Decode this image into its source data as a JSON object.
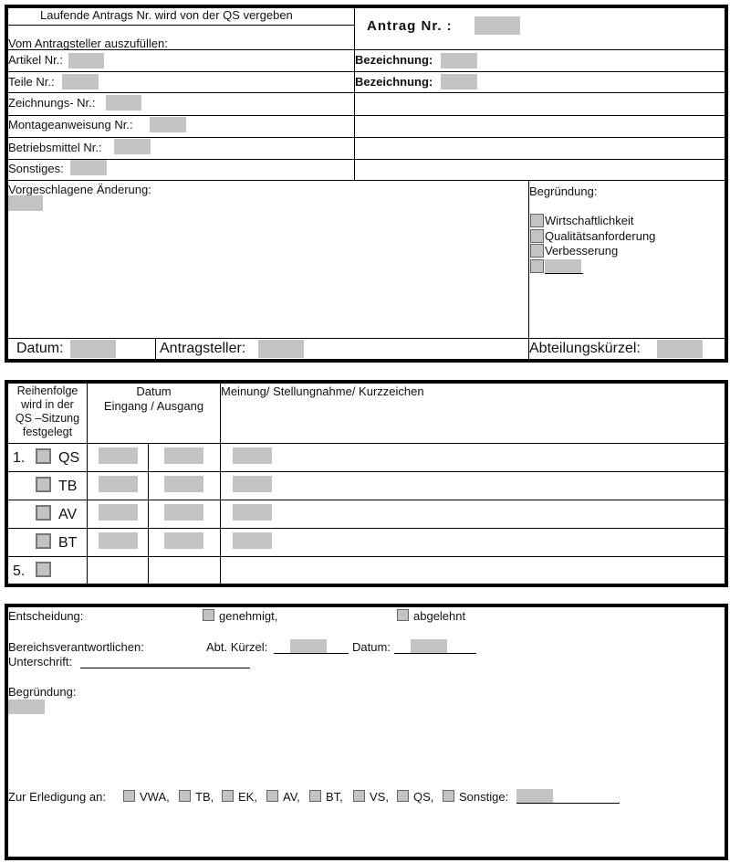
{
  "form": {
    "header_note": "Laufende Antrags Nr. wird von der QS vergeben",
    "antrag_nr_label": "Antrag Nr. :",
    "applicant_section": "Vom Antragsteller auszufüllen:",
    "fields": [
      "Artikel Nr.:",
      "Teile Nr.:",
      "Zeichnungs- Nr.:",
      "Montageanweisung Nr.:",
      "Betriebsmittel Nr.:",
      "Sonstiges:"
    ],
    "bezeichnung_label": "Bezeichnung:",
    "proposed_change": "Vorgeschlagene Änderung:",
    "reason_label": "Begründung:",
    "reasons": [
      "Wirtschaftlichkeit",
      "Qualitätsanforderung",
      "Verbesserung"
    ],
    "datum_label": "Datum:",
    "antragsteller_label": "Antragsteller:",
    "abteilung_label": "Abteilungskürzel:"
  },
  "routing": {
    "col1_header": "Reihenfolge wird in der QS –Sitzung festgelegt",
    "col1_lines": [
      "Reihenfolge",
      "wird in der",
      "QS –Sitzung",
      "festgelegt"
    ],
    "datum_header": "Datum",
    "datum_sub": "Eingang / Ausgang",
    "opinion_header": "Meinung/ Stellungnahme/ Kurzzeichen",
    "rows": [
      {
        "num": "1.",
        "dept": "QS"
      },
      {
        "num": "",
        "dept": "TB"
      },
      {
        "num": "",
        "dept": "AV"
      },
      {
        "num": "",
        "dept": "BT"
      },
      {
        "num": "5.",
        "dept": ""
      }
    ]
  },
  "decision": {
    "label": "Entscheidung:",
    "approved": "genehmigt,",
    "rejected": "abgelehnt",
    "responsible": "Bereichsverantwortlichen:",
    "abt_kuerzel": "Abt. Kürzel:",
    "datum": "Datum:",
    "signature": "Unterschrift:",
    "reason": "Begründung:",
    "for_completion": "Zur Erledigung an:",
    "departments": [
      "VWA,",
      "TB,",
      "EK,",
      "AV,",
      "BT,",
      "VS,",
      "QS,",
      "Sonstige:"
    ]
  }
}
